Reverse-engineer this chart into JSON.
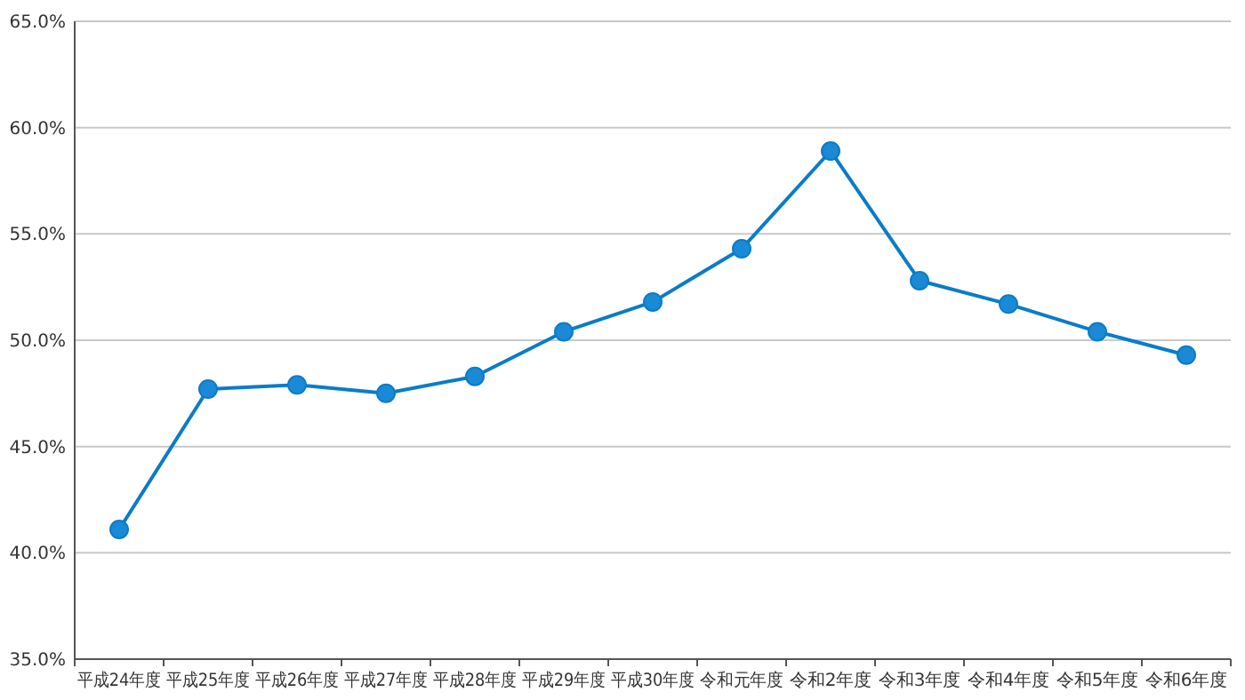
{
  "chart_data": {
    "type": "line",
    "categories": [
      "平成24年度",
      "平成25年度",
      "平成26年度",
      "平成27年度",
      "平成28年度",
      "平成29年度",
      "平成30年度",
      "令和元年度",
      "令和2年度",
      "令和3年度",
      "令和4年度",
      "令和5年度",
      "令和6年度"
    ],
    "series": [
      {
        "color": "#0a7cc8",
        "values": [
          41.1,
          47.7,
          47.9,
          47.5,
          48.3,
          50.4,
          51.8,
          54.3,
          58.9,
          52.8,
          51.7,
          50.4,
          49.3
        ]
      }
    ],
    "ylim": [
      35,
      65
    ],
    "yticks": [
      {
        "value": 35,
        "label": "35.0%"
      },
      {
        "value": 40,
        "label": "40.0%"
      },
      {
        "value": 45,
        "label": "45.0%"
      },
      {
        "value": 50,
        "label": "50.0%"
      },
      {
        "value": 55,
        "label": "55.0%"
      },
      {
        "value": 60,
        "label": "60.0%"
      },
      {
        "value": 65,
        "label": "65.0%"
      }
    ],
    "grid": "y",
    "marker": "circle",
    "line_style": "solid"
  }
}
